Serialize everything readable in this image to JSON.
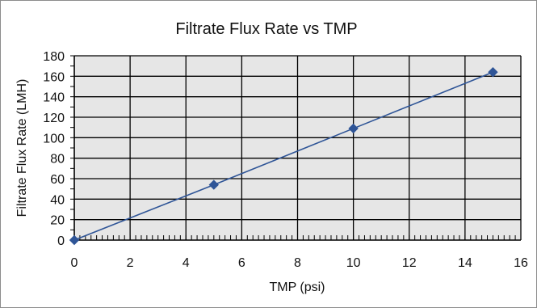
{
  "chart_data": {
    "type": "scatter",
    "title": "Filtrate Flux Rate vs TMP",
    "xlabel": "TMP (psi)",
    "ylabel": "Filtrate Flux Rate (LMH)",
    "xlim": [
      0,
      16
    ],
    "ylim": [
      0,
      180
    ],
    "xticks": [
      "0",
      "2",
      "4",
      "6",
      "8",
      "10",
      "12",
      "14",
      "16"
    ],
    "yticks": [
      "0",
      "20",
      "40",
      "60",
      "80",
      "100",
      "120",
      "140",
      "160",
      "180"
    ],
    "grid": true,
    "legend": "none",
    "series": [
      {
        "x": [
          0,
          5,
          10,
          15
        ],
        "y": [
          0,
          54,
          109,
          164
        ],
        "color": "#2f5597",
        "marker": "diamond",
        "line": true
      }
    ],
    "plot_background": "#e6e6e6"
  }
}
